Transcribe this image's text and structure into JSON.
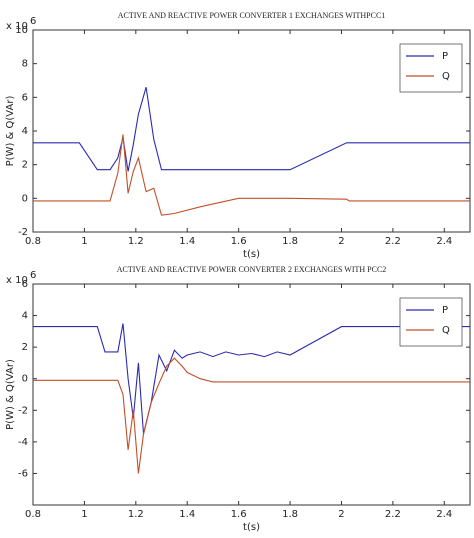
{
  "chart_data": [
    {
      "type": "line",
      "title": "ACTIVE AND REACTIVE POWER CONVERTER 1 EXCHANGES WITHPCC1",
      "x_label": "t(s)",
      "y_label": "P(W) & Q(VAr)",
      "y_multiplier": "x 10",
      "y_multiplier_exponent": 6,
      "x": [
        0.8,
        0.98,
        1.05,
        1.1,
        1.13,
        1.15,
        1.17,
        1.19,
        1.21,
        1.24,
        1.27,
        1.3,
        1.35,
        1.45,
        1.6,
        1.8,
        2.02,
        2.03,
        2.5
      ],
      "series": [
        {
          "name": "P",
          "color": "#2b2bb0",
          "values": [
            3.3,
            3.3,
            1.7,
            1.7,
            2.4,
            3.6,
            1.6,
            3.2,
            5.0,
            6.6,
            3.5,
            1.7,
            1.7,
            1.7,
            1.7,
            1.7,
            3.3,
            3.3,
            3.3
          ]
        },
        {
          "name": "Q",
          "color": "#c0502a",
          "values": [
            -0.15,
            -0.15,
            -0.15,
            -0.15,
            1.5,
            3.8,
            0.3,
            1.6,
            2.4,
            0.4,
            0.6,
            -1.0,
            -0.9,
            -0.5,
            0,
            0,
            -0.05,
            -0.15,
            -0.15
          ]
        }
      ],
      "xlim": [
        0.8,
        2.5
      ],
      "xticks": [
        0.8,
        1,
        1.2,
        1.4,
        1.6,
        1.8,
        2,
        2.2,
        2.4
      ],
      "ylim": [
        -2,
        10
      ],
      "yticks": [
        -2,
        0,
        2,
        4,
        6,
        8,
        10
      ],
      "legend": "upper right"
    },
    {
      "type": "line",
      "title": "ACTIVE AND REACTIVE POWER CONVERTER 2 EXCHANGES WITH PCC2",
      "x_label": "t(s)",
      "y_label": "P(W) & Q(VAr)",
      "y_multiplier": "x 10",
      "y_multiplier_exponent": 6,
      "x": [
        0.8,
        1.05,
        1.08,
        1.13,
        1.15,
        1.17,
        1.19,
        1.21,
        1.23,
        1.26,
        1.29,
        1.32,
        1.35,
        1.38,
        1.4,
        1.45,
        1.5,
        1.55,
        1.6,
        1.65,
        1.7,
        1.75,
        1.8,
        2.0,
        2.5
      ],
      "series": [
        {
          "name": "P",
          "color": "#2b2bb0",
          "values": [
            3.3,
            3.3,
            1.7,
            1.7,
            3.5,
            0,
            -2.5,
            1,
            -3.5,
            -1.5,
            1.5,
            0.5,
            1.8,
            1.3,
            1.5,
            1.7,
            1.4,
            1.7,
            1.5,
            1.6,
            1.4,
            1.7,
            1.5,
            3.3,
            3.3
          ]
        },
        {
          "name": "Q",
          "color": "#c0502a",
          "values": [
            -0.1,
            -0.1,
            -0.1,
            -0.1,
            -1,
            -4.5,
            -2,
            -6,
            -3.5,
            -1.5,
            -0.3,
            0.8,
            1.3,
            0.8,
            0.4,
            0,
            -0.2,
            -0.2,
            -0.2,
            -0.2,
            -0.2,
            -0.2,
            -0.2,
            -0.2,
            -0.2
          ]
        }
      ],
      "xlim": [
        0.8,
        2.5
      ],
      "xticks": [
        0.8,
        1,
        1.2,
        1.4,
        1.6,
        1.8,
        2,
        2.2,
        2.4
      ],
      "ylim": [
        -8,
        6
      ],
      "yticks": [
        -6,
        -4,
        -2,
        0,
        2,
        4,
        6
      ],
      "legend": "upper right"
    }
  ]
}
